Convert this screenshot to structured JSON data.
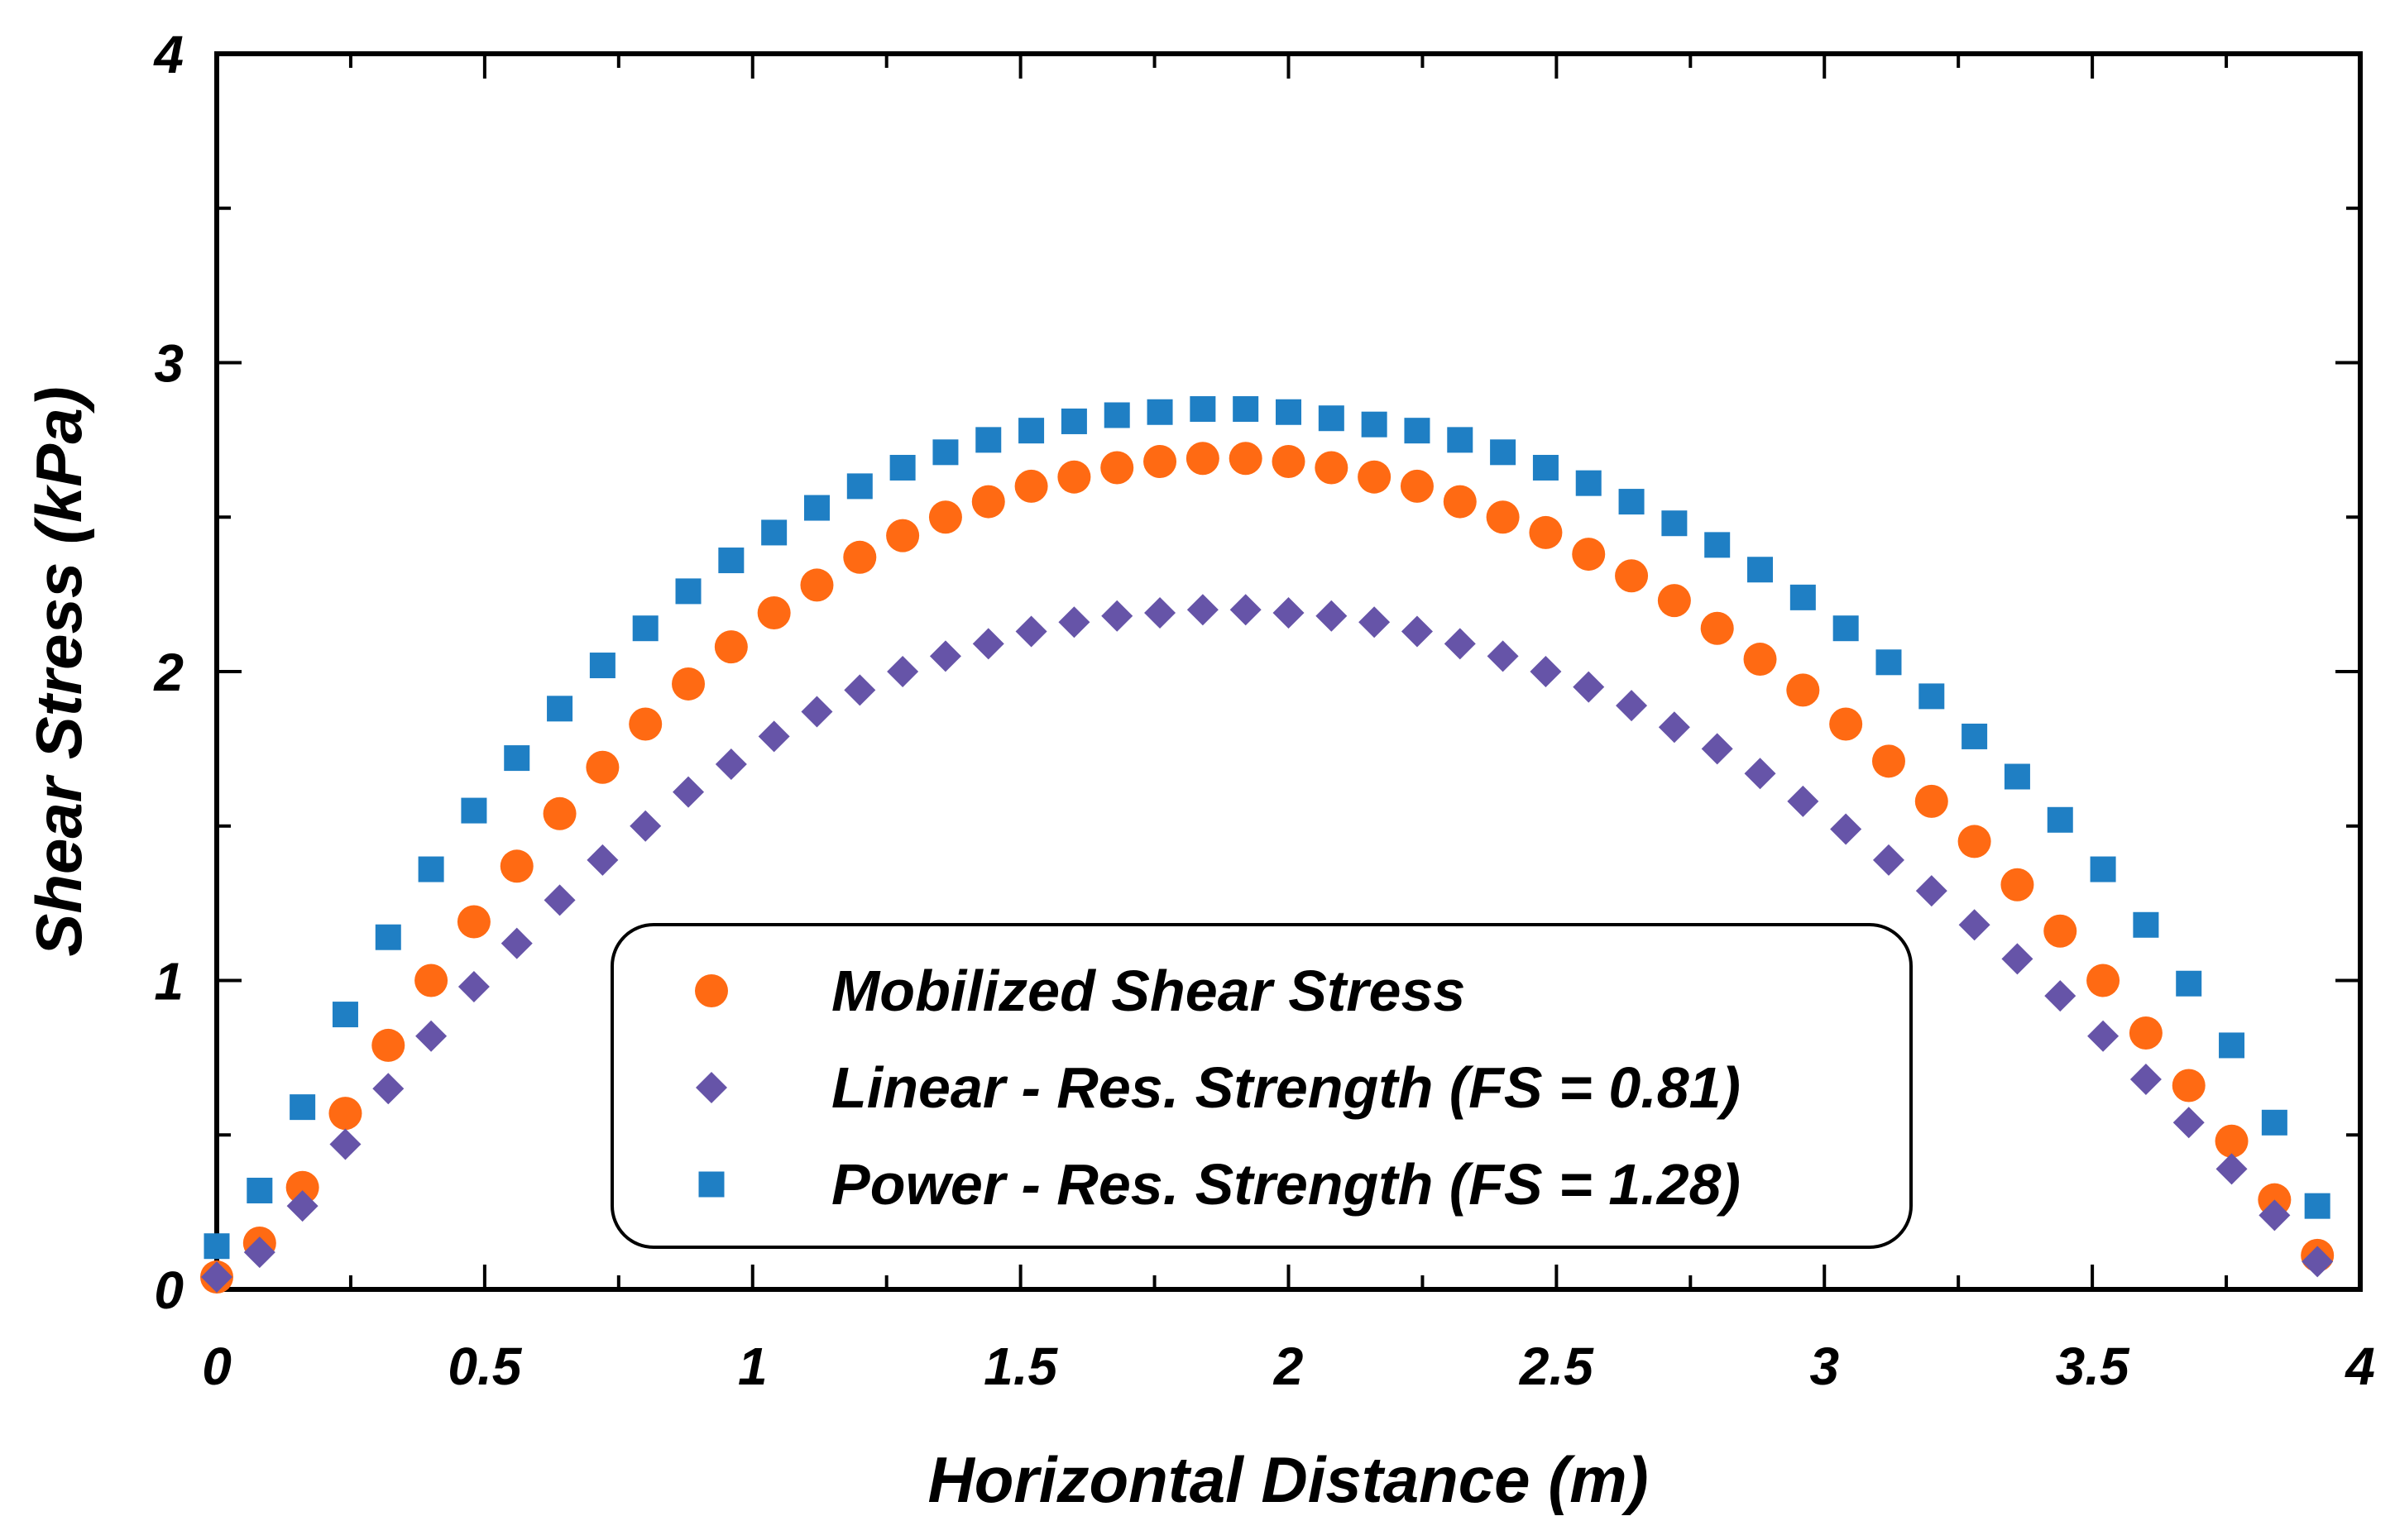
{
  "chart_data": {
    "type": "scatter",
    "title": "",
    "xlabel": "Horizontal Distance (m)",
    "ylabel": "Shear Stress (kPa)",
    "xlim": [
      0,
      4
    ],
    "ylim": [
      0,
      4
    ],
    "xticks": [
      0,
      0.5,
      1,
      1.5,
      2,
      2.5,
      3,
      3.5,
      4
    ],
    "xtick_labels": [
      "0",
      "0.5",
      "1",
      "1.5",
      "2",
      "2.5",
      "3",
      "3.5",
      "4"
    ],
    "yticks": [
      0,
      1,
      2,
      3,
      4
    ],
    "ytick_labels": [
      "0",
      "1",
      "2",
      "3",
      "4"
    ],
    "grid": false,
    "legend_position": "bottom-center",
    "x": [
      0,
      0.08,
      0.16,
      0.24,
      0.32,
      0.4,
      0.48,
      0.56,
      0.64,
      0.72,
      0.8,
      0.88,
      0.96,
      1.04,
      1.12,
      1.2,
      1.28,
      1.36,
      1.44,
      1.52,
      1.6,
      1.68,
      1.76,
      1.84,
      1.92,
      2.0,
      2.08,
      2.16,
      2.24,
      2.32,
      2.4,
      2.48,
      2.56,
      2.64,
      2.72,
      2.8,
      2.88,
      2.96,
      3.04,
      3.12,
      3.2,
      3.28,
      3.36,
      3.44,
      3.52,
      3.6,
      3.68,
      3.76,
      3.84,
      3.92
    ],
    "series": [
      {
        "name": "Mobilized Shear Stress",
        "marker": "circle",
        "color": "#ff6a13",
        "values": [
          0.04,
          0.15,
          0.33,
          0.57,
          0.79,
          1.0,
          1.19,
          1.37,
          1.54,
          1.69,
          1.83,
          1.96,
          2.08,
          2.19,
          2.28,
          2.37,
          2.44,
          2.5,
          2.55,
          2.6,
          2.63,
          2.66,
          2.68,
          2.69,
          2.69,
          2.68,
          2.66,
          2.63,
          2.6,
          2.55,
          2.5,
          2.45,
          2.38,
          2.31,
          2.23,
          2.14,
          2.04,
          1.94,
          1.83,
          1.71,
          1.58,
          1.45,
          1.31,
          1.16,
          1.0,
          0.83,
          0.66,
          0.48,
          0.29,
          0.11
        ]
      },
      {
        "name": "Linear - Res. Strength (FS = 0.81)",
        "marker": "diamond",
        "color": "#6654a8",
        "values": [
          0.04,
          0.12,
          0.27,
          0.47,
          0.65,
          0.82,
          0.98,
          1.12,
          1.26,
          1.39,
          1.5,
          1.61,
          1.7,
          1.79,
          1.87,
          1.94,
          2.0,
          2.05,
          2.09,
          2.13,
          2.16,
          2.18,
          2.19,
          2.2,
          2.2,
          2.19,
          2.18,
          2.16,
          2.13,
          2.09,
          2.05,
          2.0,
          1.95,
          1.89,
          1.82,
          1.75,
          1.67,
          1.58,
          1.49,
          1.39,
          1.29,
          1.18,
          1.07,
          0.95,
          0.82,
          0.68,
          0.54,
          0.39,
          0.24,
          0.09
        ]
      },
      {
        "name": "Power - Res. Strength (FS = 1.28)",
        "marker": "square",
        "color": "#1f7fc4",
        "values": [
          0.14,
          0.32,
          0.59,
          0.89,
          1.14,
          1.36,
          1.55,
          1.72,
          1.88,
          2.02,
          2.14,
          2.26,
          2.36,
          2.45,
          2.53,
          2.6,
          2.66,
          2.71,
          2.75,
          2.78,
          2.81,
          2.83,
          2.84,
          2.85,
          2.85,
          2.84,
          2.82,
          2.8,
          2.78,
          2.75,
          2.71,
          2.66,
          2.61,
          2.55,
          2.48,
          2.41,
          2.33,
          2.24,
          2.14,
          2.03,
          1.92,
          1.79,
          1.66,
          1.52,
          1.36,
          1.18,
          0.99,
          0.79,
          0.54,
          0.27
        ]
      }
    ]
  }
}
